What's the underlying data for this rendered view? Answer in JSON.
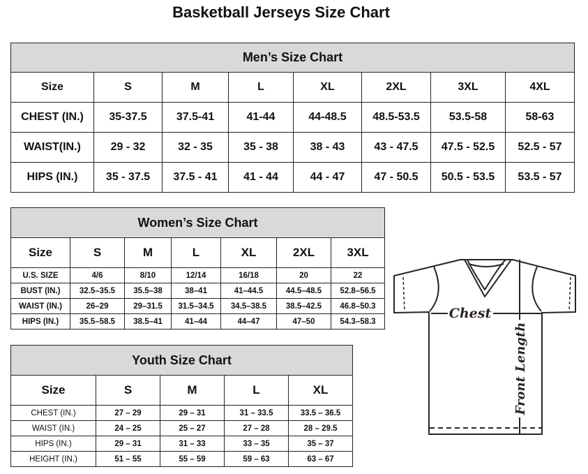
{
  "title": "Basketball Jerseys Size Chart",
  "men": {
    "heading": "Men’s Size Chart",
    "columns": [
      "Size",
      "S",
      "M",
      "L",
      "XL",
      "2XL",
      "3XL",
      "4XL"
    ],
    "rows": [
      [
        "CHEST (IN.)",
        "35-37.5",
        "37.5-41",
        "41-44",
        "44-48.5",
        "48.5-53.5",
        "53.5-58",
        "58-63"
      ],
      [
        "WAIST(IN.)",
        "29 - 32",
        "32 - 35",
        "35 - 38",
        "38 - 43",
        "43 - 47.5",
        "47.5 - 52.5",
        "52.5 - 57"
      ],
      [
        "HIPS (IN.)",
        "35 - 37.5",
        "37.5 - 41",
        "41 - 44",
        "44 - 47",
        "47 - 50.5",
        "50.5 - 53.5",
        "53.5 - 57"
      ]
    ]
  },
  "women": {
    "heading": "Women’s Size Chart",
    "columns": [
      "Size",
      "S",
      "M",
      "L",
      "XL",
      "2XL",
      "3XL"
    ],
    "rows": [
      [
        "U.S.  SIZE",
        "4/6",
        "8/10",
        "12/14",
        "16/18",
        "20",
        "22"
      ],
      [
        "BUST  (IN.)",
        "32.5–35.5",
        "35.5–38",
        "38–41",
        "41–44.5",
        "44.5–48.5",
        "52.8–56.5"
      ],
      [
        "WAIST  (IN.)",
        "26–29",
        "29–31.5",
        "31.5–34.5",
        "34.5–38.5",
        "38.5–42.5",
        "46.8–50.3"
      ],
      [
        "HIPS  (IN.)",
        "35.5–58.5",
        "38.5–41",
        "41–44",
        "44–47",
        "47–50",
        "54.3–58.3"
      ]
    ]
  },
  "youth": {
    "heading": "Youth Size Chart",
    "columns": [
      "Size",
      "S",
      "M",
      "L",
      "XL"
    ],
    "rows": [
      [
        "CHEST  (IN.)",
        "27  –  29",
        "29  –  31",
        "31  –  33.5",
        "33.5  –  36.5"
      ],
      [
        "WAIST  (IN.)",
        "24  –  25",
        "25  –  27",
        "27  –  28",
        "28  –  29.5"
      ],
      [
        "HIPS  (IN.)",
        "29  –  31",
        "31  –  33",
        "33  –  35",
        "35  –  37"
      ],
      [
        "HEIGHT  (IN.)",
        "51  –  55",
        "55  –  59",
        "59  –  63",
        "63  –  67"
      ]
    ]
  },
  "diagram": {
    "chest_label": "Chest",
    "length_label": "Front Length",
    "line_color": "#2b2322"
  }
}
